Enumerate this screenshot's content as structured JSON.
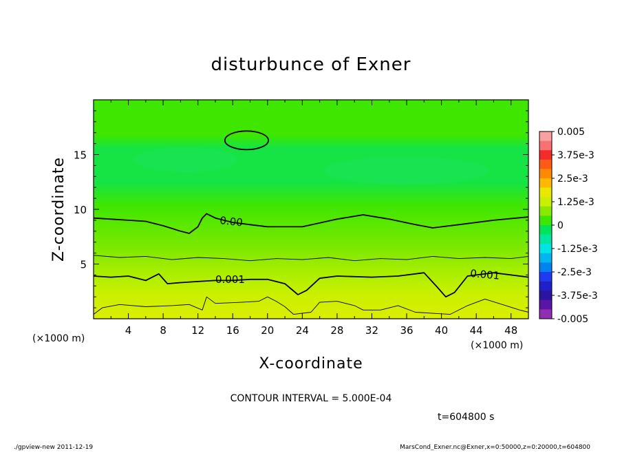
{
  "chart_data": {
    "type": "heatmap",
    "title": "disturbunce of Exner",
    "xlabel": "X-coordinate",
    "ylabel": "Z-coordinate",
    "x_unit": "(×1000 m)",
    "z_unit": "(×1000 m)",
    "xlim": [
      0,
      50
    ],
    "ylim": [
      0,
      20
    ],
    "x_ticks": [
      4,
      8,
      12,
      16,
      20,
      24,
      28,
      32,
      36,
      40,
      44,
      48
    ],
    "y_ticks": [
      5,
      10,
      15
    ],
    "colorbar": {
      "levels": [
        0.005,
        0.00375,
        0.0025,
        0.00125,
        0,
        -0.00125,
        -0.0025,
        -0.00375,
        -0.005
      ],
      "labels": [
        "0.005",
        "3.75e-3",
        "2.5e-3",
        "1.25e-3",
        "0",
        "-1.25e-3",
        "-2.5e-3",
        "-3.75e-3",
        "-0.005"
      ],
      "colors": [
        "#f9a0a0",
        "#f97272",
        "#f52a2a",
        "#ff5a16",
        "#ff8a00",
        "#ffb800",
        "#e9e900",
        "#c8f000",
        "#8be800",
        "#3ee600",
        "#00e45a",
        "#00e6a0",
        "#00e4e6",
        "#00b6f0",
        "#0082f0",
        "#1f3af0",
        "#2020c8",
        "#2a14a0",
        "#5a14a8",
        "#9030b0"
      ]
    },
    "contour_labels": [
      "0.00",
      "0.001",
      "0.001"
    ],
    "contour_interval": "CONTOUR INTERVAL = 5.000E-04",
    "time": "t=604800  s",
    "contours": [
      {
        "level": 0.0,
        "x": [
          0,
          2,
          4,
          6,
          8,
          10,
          11,
          12,
          12.5,
          13,
          14,
          16,
          18,
          20,
          24,
          28,
          31,
          34,
          37,
          39,
          42,
          46,
          50
        ],
        "z": [
          9.2,
          9.1,
          9.0,
          8.9,
          8.5,
          8.0,
          7.8,
          8.4,
          9.2,
          9.6,
          9.2,
          8.8,
          8.6,
          8.4,
          8.4,
          9.1,
          9.5,
          9.1,
          8.6,
          8.3,
          8.6,
          9.0,
          9.3
        ]
      },
      {
        "level": 0.0005,
        "x": [
          0,
          3,
          6,
          9,
          12,
          15,
          18,
          21,
          24,
          27,
          30,
          33,
          36,
          39,
          42,
          45,
          48,
          50
        ],
        "z": [
          5.8,
          5.6,
          5.7,
          5.4,
          5.6,
          5.5,
          5.3,
          5.5,
          5.4,
          5.6,
          5.3,
          5.5,
          5.4,
          5.7,
          5.5,
          5.6,
          5.5,
          5.7
        ]
      },
      {
        "level": 0.001,
        "x": [
          0,
          2,
          4,
          6,
          7.5,
          8.5,
          10,
          12,
          14,
          16,
          18,
          20,
          22,
          23.5,
          24.5,
          26,
          28,
          32,
          35,
          38,
          39.5,
          40.5,
          41.5,
          43,
          46,
          49,
          50
        ],
        "z": [
          3.9,
          3.8,
          3.9,
          3.5,
          4.1,
          3.2,
          3.3,
          3.4,
          3.5,
          3.5,
          3.6,
          3.6,
          3.2,
          2.2,
          2.6,
          3.7,
          3.9,
          3.8,
          3.9,
          4.2,
          2.9,
          2.0,
          2.4,
          3.9,
          4.2,
          3.9,
          3.8
        ]
      },
      {
        "level": 0.0015,
        "x": [
          0,
          1,
          3,
          6,
          9,
          11,
          12.5,
          13,
          14,
          17,
          19,
          20,
          21,
          22,
          23,
          25,
          26,
          28,
          30,
          31,
          33,
          35,
          37,
          39,
          41,
          43,
          45,
          47,
          49,
          50
        ],
        "z": [
          0.4,
          1.0,
          1.3,
          1.1,
          1.2,
          1.3,
          0.8,
          2.0,
          1.4,
          1.5,
          1.6,
          2.0,
          1.6,
          1.1,
          0.4,
          0.6,
          1.5,
          1.6,
          1.2,
          0.8,
          0.8,
          1.2,
          0.6,
          0.5,
          0.4,
          1.2,
          1.8,
          1.3,
          0.8,
          0.6
        ]
      }
    ],
    "closed_contours": [
      {
        "level": 0.0,
        "cx": 17.6,
        "cz": 16.3,
        "rx": 2.5,
        "rz": 0.85
      }
    ]
  },
  "footer": {
    "left": "./gpview-new   2011-12-19",
    "right": "MarsCond_Exner.nc@Exner,x=0:50000,z=0:20000,t=604800"
  }
}
